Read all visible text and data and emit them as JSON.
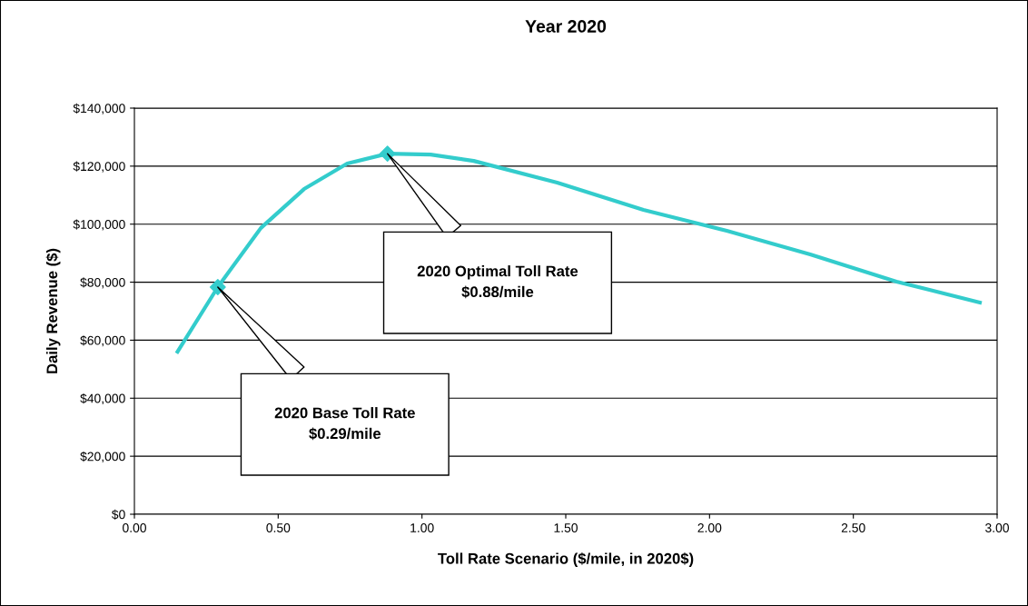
{
  "chart_data": {
    "type": "line",
    "title": "Year 2020",
    "xlabel": "Toll Rate Scenario ($/mile, in 2020$)",
    "ylabel": "Daily Revenue ($)",
    "series": [
      {
        "color": "#33cccc",
        "marker": "none",
        "x": [
          0.15,
          0.29,
          0.44,
          0.59,
          0.74,
          0.88,
          1.03,
          1.18,
          1.47,
          1.77,
          2.06,
          2.35,
          2.65,
          2.94
        ],
        "values": [
          56000,
          78300,
          98700,
          112100,
          120900,
          124300,
          124000,
          121800,
          114300,
          104900,
          97700,
          89600,
          80200,
          73000
        ]
      },
      {
        "type": "scatter",
        "color": "#33cccc",
        "marker": "diamond",
        "x": [
          0.29,
          0.88
        ],
        "values": [
          78300,
          124300
        ]
      }
    ],
    "annotations": [
      "2020 Base Toll Rate\n$0.29/mile",
      "2020 Optimal Toll Rate\n$0.88/mile"
    ],
    "xlim": [
      0,
      3
    ],
    "xticks": [
      {
        "value": 0,
        "label": "0.00"
      },
      {
        "value": 0.5,
        "label": "0.50"
      },
      {
        "value": 1,
        "label": "1.00"
      },
      {
        "value": 1.5,
        "label": "1.50"
      },
      {
        "value": 2,
        "label": "2.00"
      },
      {
        "value": 2.5,
        "label": "2.50"
      },
      {
        "value": 3,
        "label": "3.00"
      }
    ],
    "ylim": [
      0,
      140000
    ],
    "yticks": [
      {
        "value": 0,
        "label": "$0"
      },
      {
        "value": 20000,
        "label": "$20,000"
      },
      {
        "value": 40000,
        "label": "$40,000"
      },
      {
        "value": 60000,
        "label": "$60,000"
      },
      {
        "value": 80000,
        "label": "$80,000"
      },
      {
        "value": 100000,
        "label": "$100,000"
      },
      {
        "value": 120000,
        "label": "$120,000"
      },
      {
        "value": 140000,
        "label": "$140,000"
      }
    ],
    "grid": "y",
    "legend": false
  }
}
